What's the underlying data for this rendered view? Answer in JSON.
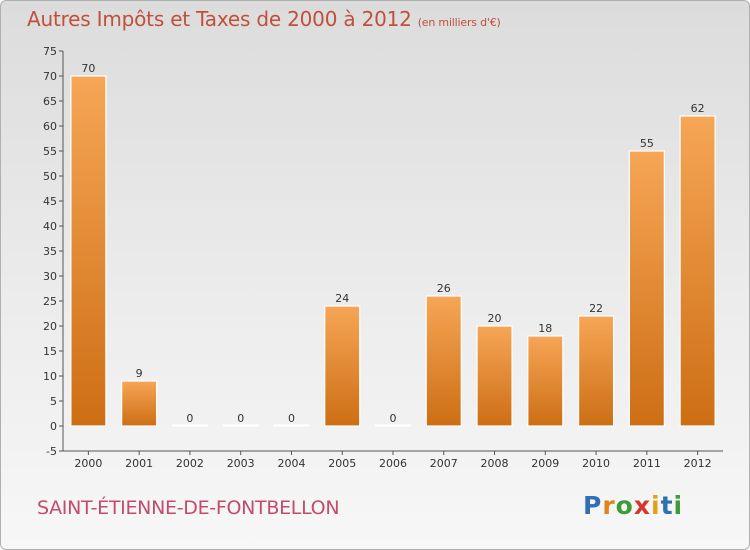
{
  "title": "Autres Impôts et Taxes de 2000 à 2012",
  "title_unit": "(en milliers d'€)",
  "location": "SAINT-ÉTIENNE-DE-FONTBELLON",
  "brand": {
    "letters": [
      "P",
      "r",
      "o",
      "x",
      "i",
      "t",
      "i"
    ],
    "colors": [
      "#2f6fb3",
      "#e2831a",
      "#3e9b3a",
      "#d6362b",
      "#e0a21a",
      "#2f6fb3",
      "#3e9b3a"
    ]
  },
  "chart_data": {
    "type": "bar",
    "title": "Autres Impôts et Taxes de 2000 à 2012",
    "categories": [
      "2000",
      "2001",
      "2002",
      "2003",
      "2004",
      "2005",
      "2006",
      "2007",
      "2008",
      "2009",
      "2010",
      "2011",
      "2012"
    ],
    "values": [
      70,
      9,
      0,
      0,
      0,
      24,
      0,
      26,
      20,
      18,
      22,
      55,
      62
    ],
    "ylim": [
      -5,
      75
    ],
    "yticks": [
      -5,
      0,
      5,
      10,
      15,
      20,
      25,
      30,
      35,
      40,
      45,
      50,
      55,
      60,
      65,
      70,
      75
    ],
    "xlabel": "",
    "ylabel": "",
    "grid": false,
    "bar_color_top": "#f6a656",
    "bar_color_bottom": "#cd6e14"
  }
}
